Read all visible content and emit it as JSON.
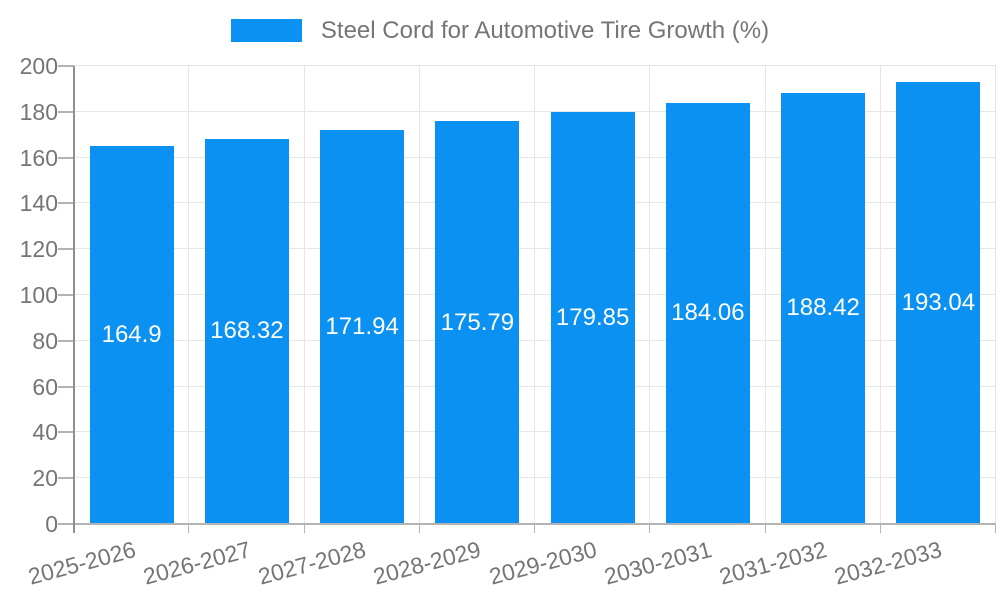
{
  "chart_data": {
    "type": "bar",
    "title": "Steel Cord for Automotive Tire Growth (%)",
    "legend_position": "top",
    "categories": [
      "2025-2026",
      "2026-2027",
      "2027-2028",
      "2028-2029",
      "2029-2030",
      "2030-2031",
      "2031-2032",
      "2032-2033"
    ],
    "series": [
      {
        "name": "Steel Cord for Automotive Tire Growth (%)",
        "values": [
          164.9,
          168.32,
          171.94,
          175.79,
          179.85,
          184.06,
          188.42,
          193.04
        ],
        "value_labels": [
          "164.9",
          "168.32",
          "171.94",
          "175.79",
          "179.85",
          "184.06",
          "188.42",
          "193.04"
        ]
      }
    ],
    "xlabel": "",
    "ylabel": "",
    "ylim": [
      0,
      200
    ],
    "ytick_step": 20,
    "ytick_labels": [
      "0",
      "20",
      "40",
      "60",
      "80",
      "100",
      "120",
      "140",
      "160",
      "180",
      "200"
    ],
    "grid": true,
    "x_label_rotation_deg": -15,
    "colors": {
      "bar_fill": "#0A91F2",
      "bar_value_text": "#FFFFFF",
      "axis_text": "#757575",
      "legend_text": "#757575",
      "gridline": "#E6E6E6",
      "y_axis_line": "#8F8F8F",
      "x_axis_line": "#B3B3B3",
      "tick_mark": "#B3B3B3"
    }
  }
}
